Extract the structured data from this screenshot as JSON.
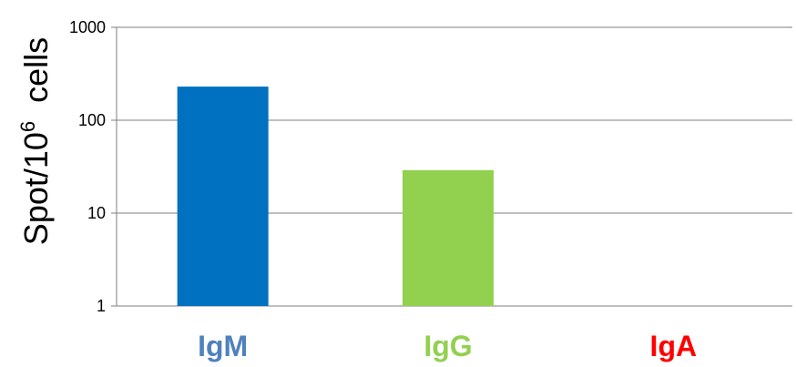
{
  "chart_data": {
    "type": "bar",
    "scale": "log",
    "ylim": [
      1,
      1000
    ],
    "yticks": [
      "1",
      "10",
      "100",
      "1000"
    ],
    "ytick_values": [
      1,
      10,
      100,
      1000
    ],
    "ylabel": {
      "text": "Spot/10",
      "superscript": "6",
      "suffix": "  cells"
    },
    "xlabel": "",
    "title": "",
    "grid": true,
    "categories": [
      "IgM",
      "IgG",
      "IgA"
    ],
    "values": [
      230,
      29,
      null
    ],
    "bar_colors": [
      "#0070c0",
      "#92d050",
      "#ff0000"
    ],
    "label_colors": [
      "#4f81bd",
      "#92d050",
      "#ff0000"
    ],
    "gridline_color": "#7f7f7f"
  }
}
